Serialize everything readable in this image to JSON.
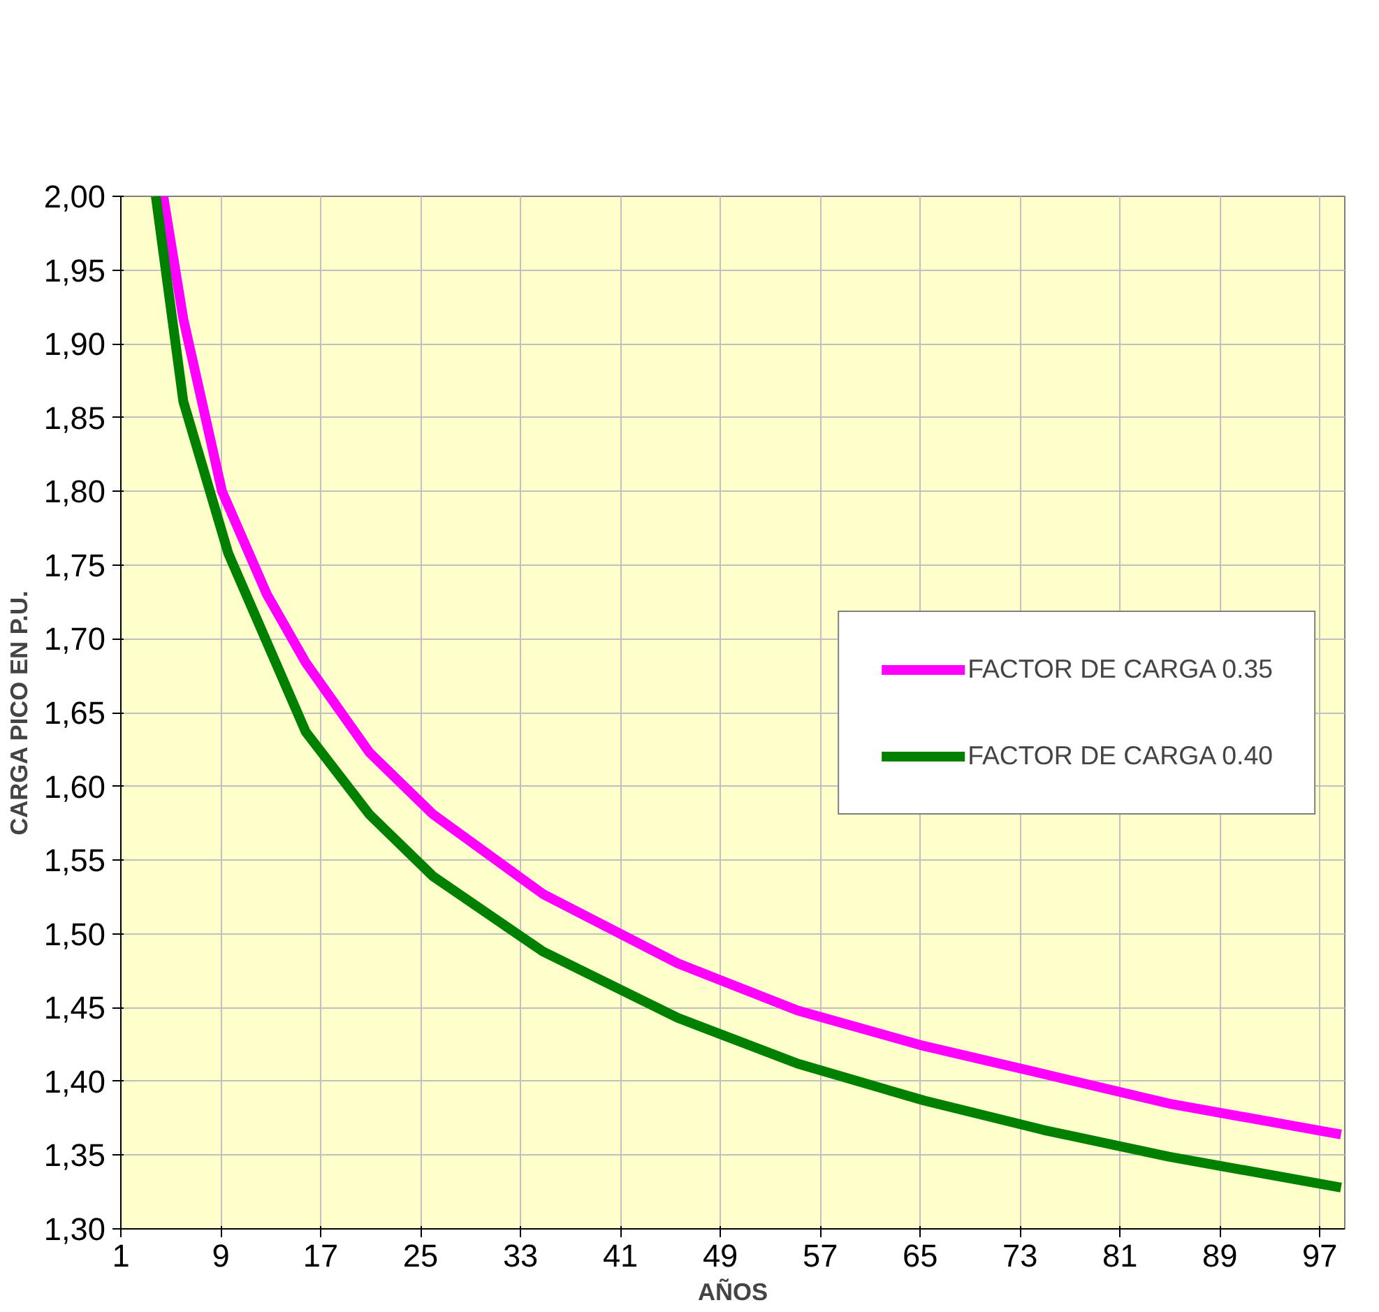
{
  "chart_data": {
    "type": "line",
    "xlabel": "AÑOS",
    "ylabel": "CARGA PICO EN P.U.",
    "xlim": [
      1,
      99
    ],
    "xticks": [
      1,
      9,
      17,
      25,
      33,
      41,
      49,
      57,
      65,
      73,
      81,
      89,
      97
    ],
    "ylim": [
      1.3,
      2.0
    ],
    "yticks": [
      {
        "value": 1.3,
        "label": "1,30"
      },
      {
        "value": 1.35,
        "label": "1,35"
      },
      {
        "value": 1.4,
        "label": "1,40"
      },
      {
        "value": 1.45,
        "label": "1,45"
      },
      {
        "value": 1.5,
        "label": "1,50"
      },
      {
        "value": 1.55,
        "label": "1,55"
      },
      {
        "value": 1.6,
        "label": "1,60"
      },
      {
        "value": 1.65,
        "label": "1,65"
      },
      {
        "value": 1.7,
        "label": "1,70"
      },
      {
        "value": 1.75,
        "label": "1,75"
      },
      {
        "value": 1.8,
        "label": "1,80"
      },
      {
        "value": 1.85,
        "label": "1,85"
      },
      {
        "value": 1.9,
        "label": "1,90"
      },
      {
        "value": 1.95,
        "label": "1,95"
      },
      {
        "value": 2.0,
        "label": "2,00"
      }
    ],
    "grid": true,
    "legend": "right",
    "marker": "none",
    "line_style": "solid",
    "series": [
      {
        "name": "FACTOR DE CARGA 0.35",
        "color": "#ff00ff",
        "x": [
          4.4,
          6.0,
          9.1,
          12.7,
          15.8,
          20.9,
          26.0,
          34.8,
          45.6,
          55.2,
          65.3,
          74.9,
          84.9,
          98.7
        ],
        "values": [
          2.0,
          1.917,
          1.8,
          1.73,
          1.684,
          1.623,
          1.581,
          1.527,
          1.48,
          1.448,
          1.424,
          1.405,
          1.385,
          1.364
        ]
      },
      {
        "name": "FACTOR DE CARGA 0.40",
        "color": "#008000",
        "x": [
          3.8,
          6.0,
          9.6,
          15.8,
          20.9,
          26.0,
          34.8,
          45.6,
          55.2,
          65.3,
          74.9,
          84.9,
          98.7
        ],
        "values": [
          2.0,
          1.861,
          1.758,
          1.637,
          1.581,
          1.539,
          1.488,
          1.443,
          1.412,
          1.387,
          1.367,
          1.349,
          1.328
        ]
      }
    ]
  }
}
